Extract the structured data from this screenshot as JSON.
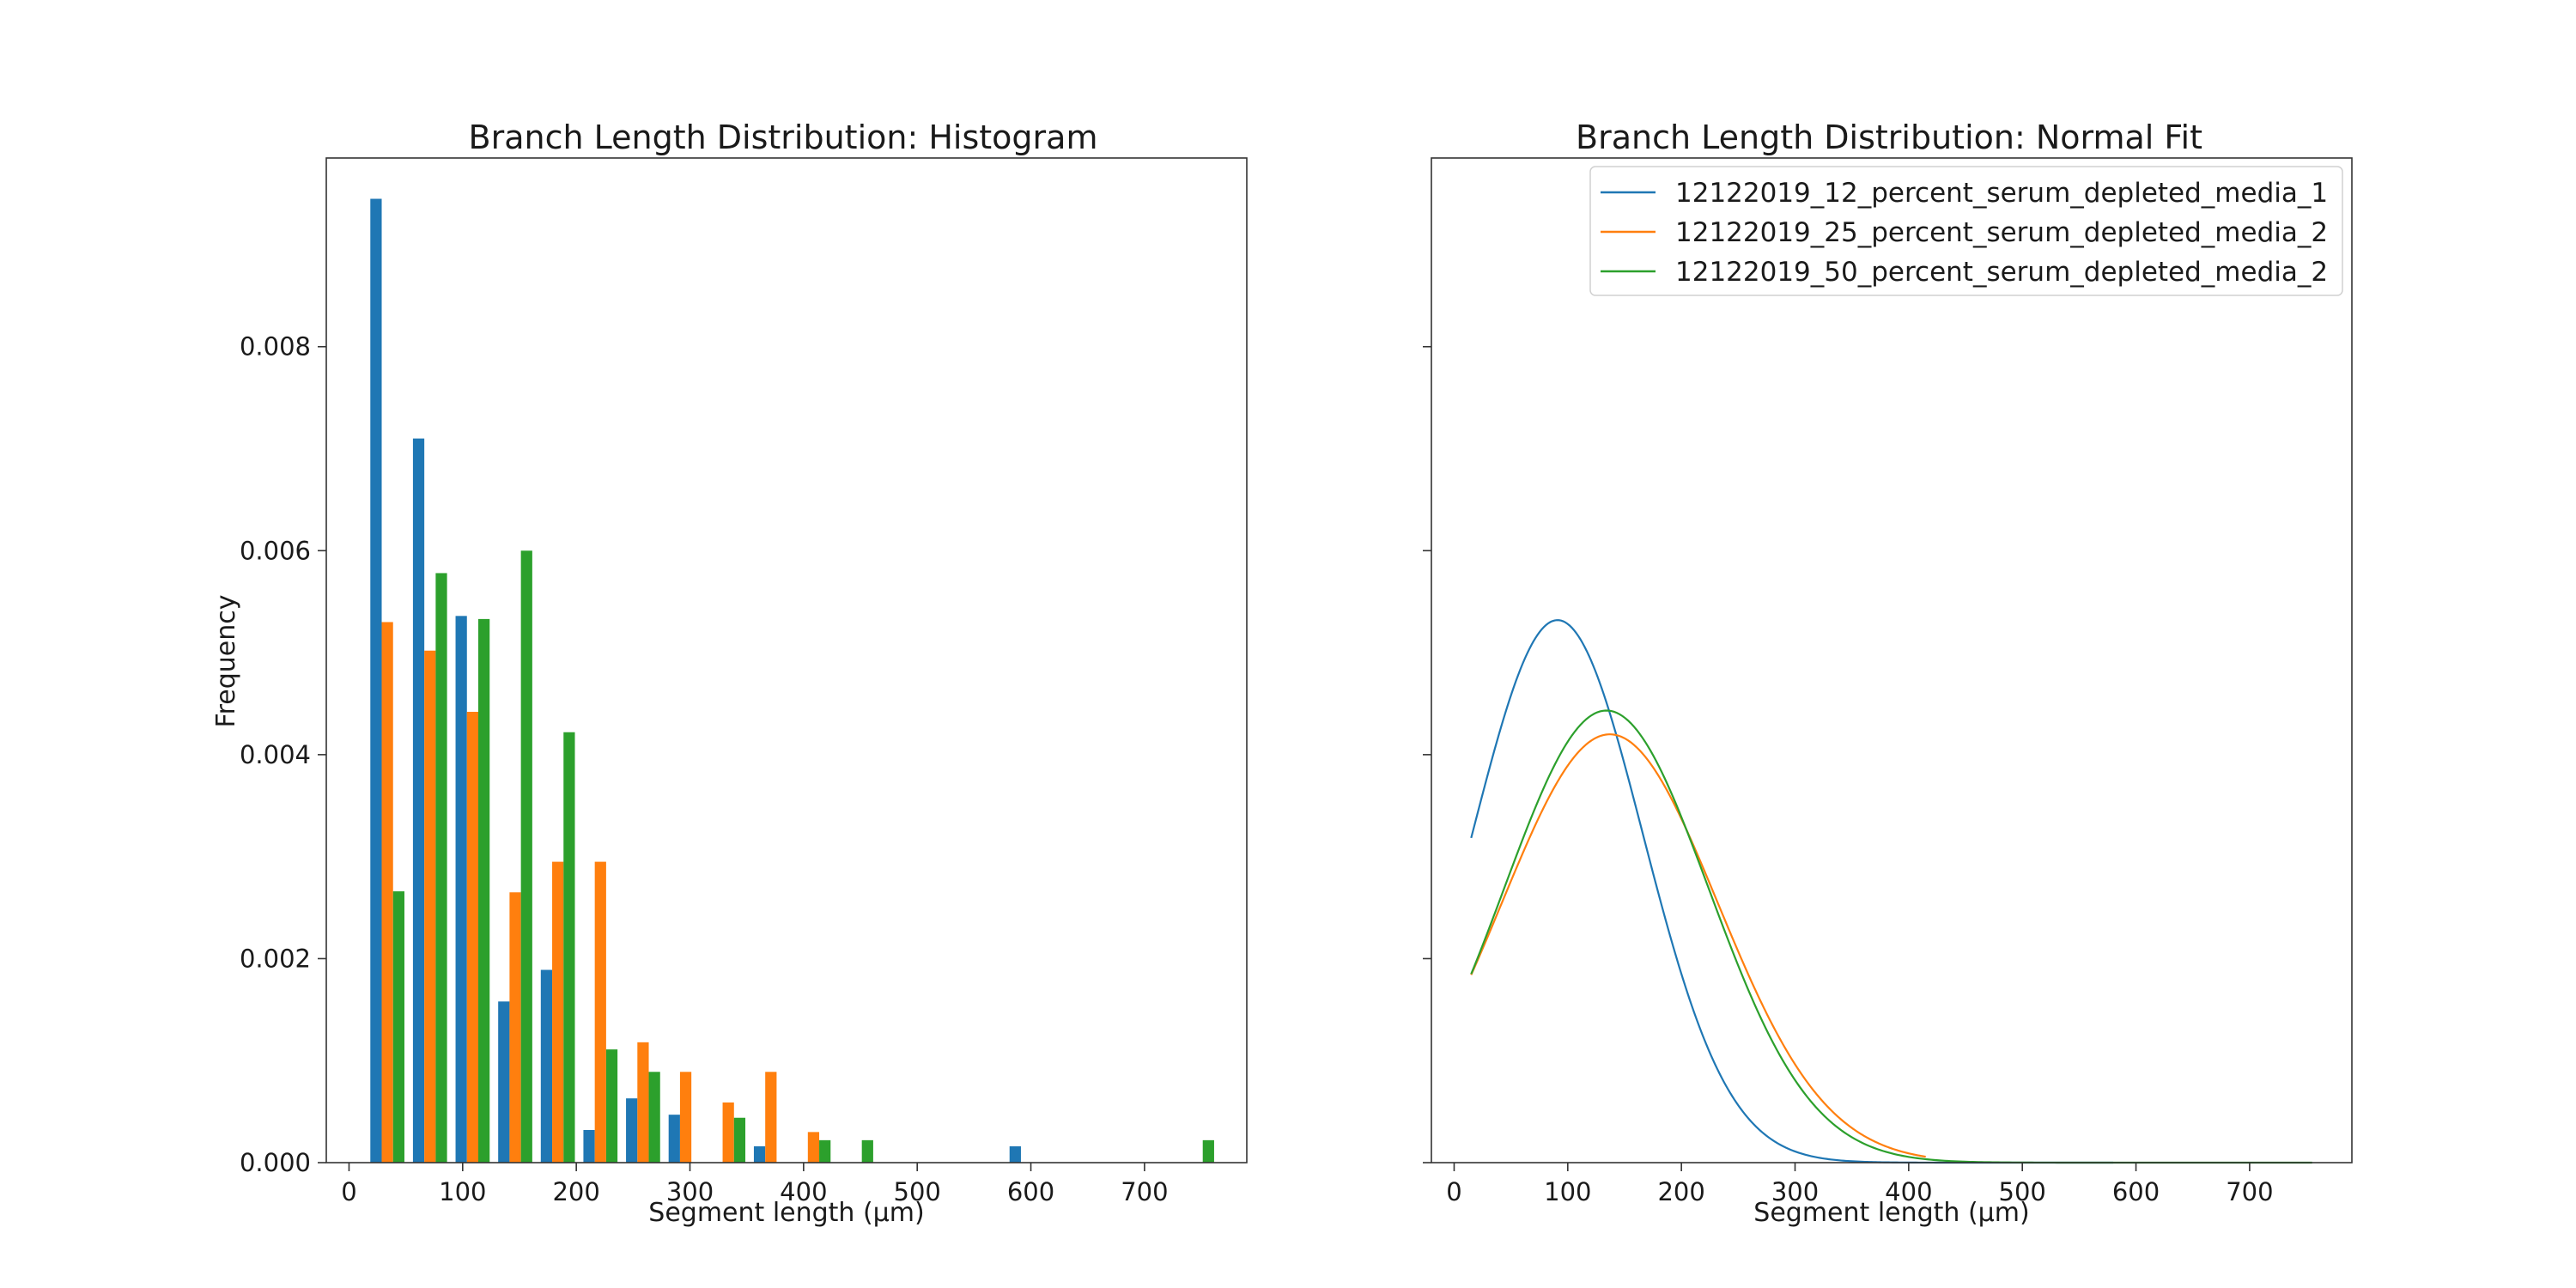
{
  "chart_data": [
    {
      "type": "bar",
      "title": "Branch Length Distribution: Histogram",
      "xlabel": "Segment length (μm)",
      "ylabel": "Frequency",
      "xlim": [
        -20,
        790
      ],
      "ylim": [
        0,
        0.00985
      ],
      "xticks": [
        0,
        100,
        200,
        300,
        400,
        500,
        600,
        700
      ],
      "yticks": [
        0,
        0.002,
        0.004,
        0.006,
        0.008
      ],
      "ytick_labels": [
        "0.000",
        "0.002",
        "0.004",
        "0.006",
        "0.008"
      ],
      "bin_edges": [
        15,
        52.5,
        90,
        127.5,
        165,
        202.5,
        240,
        277.5,
        315,
        352.5,
        390,
        427.5,
        465,
        502.5,
        540,
        577.5,
        615,
        652.5,
        690,
        727.5,
        765
      ],
      "series": [
        {
          "color": "#1f77b4",
          "values": [
            0.00945,
            0.0071,
            0.00536,
            0.00158,
            0.00189,
            0.00032,
            0.00063,
            0.00047,
            0,
            0.00016,
            0,
            0,
            0,
            0,
            0,
            0.00016,
            0,
            0,
            0,
            0
          ]
        },
        {
          "color": "#ff7f0e",
          "values": [
            0.0053,
            0.00502,
            0.00442,
            0.00265,
            0.00295,
            0.00295,
            0.00118,
            0.00089,
            0.00059,
            0.00089,
            0.0003,
            0,
            0,
            0,
            0,
            0,
            0,
            0,
            0,
            0
          ]
        },
        {
          "color": "#2ca02c",
          "values": [
            0.00266,
            0.00578,
            0.00533,
            0.006,
            0.00422,
            0.00111,
            0.00089,
            0,
            0.00044,
            0,
            0.00022,
            0.00022,
            0,
            0,
            0,
            0,
            0,
            0,
            0,
            0.00022
          ]
        }
      ]
    },
    {
      "type": "line",
      "title": "Branch Length Distribution: Normal Fit",
      "xlabel": "Segment length (μm)",
      "xlim": [
        -20,
        790
      ],
      "ylim": [
        0,
        0.00985
      ],
      "xticks": [
        0,
        100,
        200,
        300,
        400,
        500,
        600,
        700
      ],
      "yticks": [
        0,
        0.002,
        0.004,
        0.006,
        0.008
      ],
      "legend_position": "upper-right",
      "series": [
        {
          "name": "12122019_12_percent_serum_depleted_media_1",
          "color": "#1f77b4",
          "mean": 91,
          "std": 75,
          "x_start": 15,
          "x_end": 580
        },
        {
          "name": "12122019_25_percent_serum_depleted_media_2",
          "color": "#ff7f0e",
          "mean": 137,
          "std": 95,
          "x_start": 15,
          "x_end": 415
        },
        {
          "name": "12122019_50_percent_serum_depleted_media_2",
          "color": "#2ca02c",
          "mean": 134,
          "std": 90,
          "x_start": 15,
          "x_end": 755
        }
      ]
    }
  ]
}
